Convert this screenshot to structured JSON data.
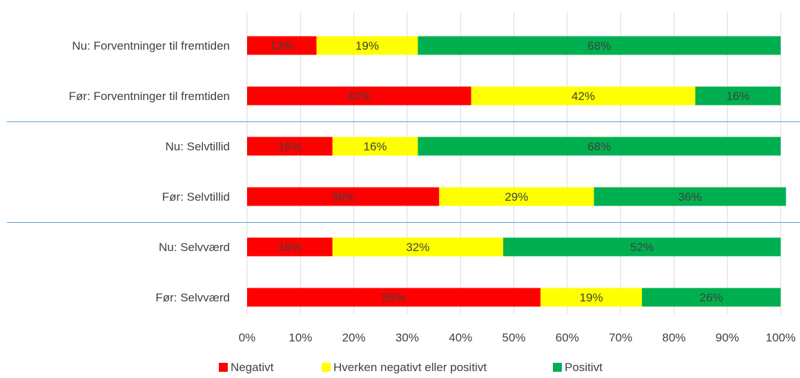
{
  "chart_data": {
    "type": "bar",
    "orientation": "horizontal",
    "stacked": "percent",
    "categories": [
      "Nu: Forventninger til fremtiden",
      "Før: Forventninger til fremtiden",
      "Nu: Selvtillid",
      "Før: Selvtillid",
      "Nu: Selvværd",
      "Før: Selvværd"
    ],
    "series": [
      {
        "name": "Negativt",
        "color": "#FF0000",
        "values": [
          13,
          42,
          16,
          36,
          16,
          55
        ]
      },
      {
        "name": "Hverken negativt eller positivt",
        "color": "#FFFF00",
        "values": [
          19,
          42,
          16,
          29,
          32,
          19
        ]
      },
      {
        "name": "Positivt",
        "color": "#00B050",
        "values": [
          68,
          16,
          68,
          36,
          52,
          26
        ]
      }
    ],
    "data_labels": [
      [
        "13%",
        "42%",
        "16%",
        "36%",
        "16%",
        "55%"
      ],
      [
        "19%",
        "42%",
        "16%",
        "29%",
        "32%",
        "19%"
      ],
      [
        "68%",
        "16%",
        "68%",
        "36%",
        "52%",
        "26%"
      ]
    ],
    "x_ticks": [
      "0%",
      "10%",
      "20%",
      "30%",
      "40%",
      "50%",
      "60%",
      "70%",
      "80%",
      "90%",
      "100%"
    ],
    "xlim": [
      0,
      100
    ],
    "title": "",
    "xlabel": "",
    "ylabel": "",
    "grid": true,
    "grid_color": "#D9D9D9",
    "separator_color": "#5B9BD5",
    "separators_after_category": [
      1,
      3
    ],
    "legend": "bottom"
  }
}
